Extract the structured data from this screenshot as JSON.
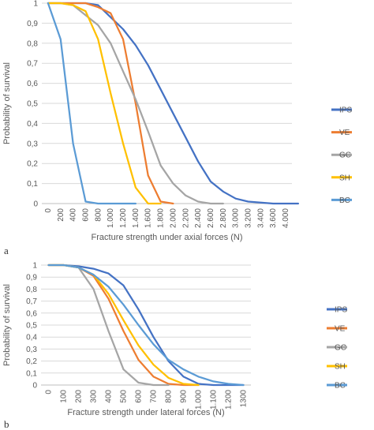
{
  "chart_data": [
    {
      "panel_label": "a",
      "type": "line",
      "xlabel": "Fracture strength under axial forces (N)",
      "ylabel": "Probability of survival",
      "x_ticks": [
        "0",
        "200",
        "400",
        "600",
        "800",
        "1.000",
        "1.200",
        "1.400",
        "1.600",
        "1.800",
        "2.000",
        "2.200",
        "2.400",
        "2.600",
        "2.800",
        "3.000",
        "3.200",
        "3.400",
        "3.600",
        "4.000"
      ],
      "y_ticks": [
        "0",
        "0,1",
        "0,2",
        "0,3",
        "0,4",
        "0,5",
        "0,6",
        "0,7",
        "0,8",
        "0,9",
        "1"
      ],
      "ylim": [
        0,
        1
      ],
      "grid": "horizontal",
      "legend_position": "right",
      "series": [
        {
          "name": "IPS",
          "color": "#4472C4",
          "points": [
            [
              0,
              1
            ],
            [
              200,
              1
            ],
            [
              400,
              1
            ],
            [
              600,
              1
            ],
            [
              800,
              0.99
            ],
            [
              1000,
              0.93
            ],
            [
              1200,
              0.87
            ],
            [
              1400,
              0.79
            ],
            [
              1600,
              0.69
            ],
            [
              1800,
              0.57
            ],
            [
              2000,
              0.45
            ],
            [
              2200,
              0.33
            ],
            [
              2400,
              0.21
            ],
            [
              2600,
              0.11
            ],
            [
              2800,
              0.06
            ],
            [
              3000,
              0.025
            ],
            [
              3200,
              0.01
            ],
            [
              3400,
              0.005
            ],
            [
              3600,
              0
            ],
            [
              4000,
              0
            ]
          ]
        },
        {
          "name": "VE",
          "color": "#ED7D31",
          "points": [
            [
              0,
              1
            ],
            [
              200,
              1
            ],
            [
              400,
              1
            ],
            [
              600,
              1
            ],
            [
              800,
              0.98
            ],
            [
              1000,
              0.95
            ],
            [
              1200,
              0.82
            ],
            [
              1400,
              0.5
            ],
            [
              1600,
              0.14
            ],
            [
              1800,
              0.01
            ],
            [
              2000,
              0
            ]
          ]
        },
        {
          "name": "GC",
          "color": "#A5A5A5",
          "points": [
            [
              0,
              1
            ],
            [
              200,
              1
            ],
            [
              400,
              0.99
            ],
            [
              600,
              0.94
            ],
            [
              800,
              0.89
            ],
            [
              1000,
              0.8
            ],
            [
              1200,
              0.66
            ],
            [
              1400,
              0.52
            ],
            [
              1600,
              0.36
            ],
            [
              1800,
              0.19
            ],
            [
              2000,
              0.1
            ],
            [
              2200,
              0.04
            ],
            [
              2400,
              0.01
            ],
            [
              2600,
              0
            ],
            [
              2800,
              0
            ]
          ]
        },
        {
          "name": "SH",
          "color": "#FFC000",
          "points": [
            [
              0,
              1
            ],
            [
              200,
              1
            ],
            [
              400,
              0.99
            ],
            [
              600,
              0.96
            ],
            [
              800,
              0.82
            ],
            [
              1000,
              0.55
            ],
            [
              1200,
              0.3
            ],
            [
              1400,
              0.08
            ],
            [
              1600,
              0
            ],
            [
              1800,
              0
            ]
          ]
        },
        {
          "name": "BC",
          "color": "#5B9BD5",
          "points": [
            [
              0,
              1
            ],
            [
              200,
              0.82
            ],
            [
              400,
              0.3
            ],
            [
              600,
              0.01
            ],
            [
              800,
              0
            ],
            [
              1000,
              0
            ],
            [
              1200,
              0
            ],
            [
              1400,
              0
            ]
          ]
        }
      ]
    },
    {
      "panel_label": "b",
      "type": "line",
      "xlabel": "Fracture strength under lateral forces (N)",
      "ylabel": "Probability of survival",
      "x_ticks": [
        "0",
        "100",
        "200",
        "300",
        "400",
        "500",
        "600",
        "700",
        "800",
        "900",
        "1.000",
        "1.100",
        "1.200",
        "1300"
      ],
      "y_ticks": [
        "0",
        "0,1",
        "0,2",
        "0,3",
        "0,4",
        "0,5",
        "0,6",
        "0,7",
        "0,8",
        "0,9",
        "1"
      ],
      "ylim": [
        0,
        1
      ],
      "grid": "horizontal",
      "legend_position": "right",
      "series": [
        {
          "name": "IPS",
          "color": "#4472C4",
          "points": [
            [
              0,
              1
            ],
            [
              100,
              1
            ],
            [
              200,
              0.99
            ],
            [
              300,
              0.97
            ],
            [
              400,
              0.93
            ],
            [
              500,
              0.83
            ],
            [
              600,
              0.63
            ],
            [
              700,
              0.4
            ],
            [
              800,
              0.2
            ],
            [
              900,
              0.07
            ],
            [
              1000,
              0.01
            ],
            [
              1100,
              0
            ],
            [
              1200,
              0
            ],
            [
              1300,
              0
            ]
          ]
        },
        {
          "name": "VE",
          "color": "#ED7D31",
          "points": [
            [
              0,
              1
            ],
            [
              100,
              1
            ],
            [
              200,
              0.98
            ],
            [
              300,
              0.91
            ],
            [
              400,
              0.72
            ],
            [
              500,
              0.45
            ],
            [
              600,
              0.21
            ],
            [
              700,
              0.07
            ],
            [
              800,
              0.01
            ],
            [
              900,
              0
            ],
            [
              1000,
              0
            ]
          ]
        },
        {
          "name": "GC",
          "color": "#A5A5A5",
          "points": [
            [
              0,
              1
            ],
            [
              100,
              1
            ],
            [
              200,
              0.98
            ],
            [
              300,
              0.8
            ],
            [
              400,
              0.45
            ],
            [
              500,
              0.13
            ],
            [
              600,
              0.02
            ],
            [
              700,
              0
            ],
            [
              800,
              0
            ]
          ]
        },
        {
          "name": "SH",
          "color": "#FFC000",
          "points": [
            [
              0,
              1
            ],
            [
              100,
              1
            ],
            [
              200,
              0.98
            ],
            [
              300,
              0.92
            ],
            [
              400,
              0.76
            ],
            [
              500,
              0.54
            ],
            [
              600,
              0.33
            ],
            [
              700,
              0.17
            ],
            [
              800,
              0.06
            ],
            [
              900,
              0.01
            ],
            [
              1000,
              0
            ]
          ]
        },
        {
          "name": "BC",
          "color": "#5B9BD5",
          "points": [
            [
              0,
              1
            ],
            [
              100,
              1
            ],
            [
              200,
              0.98
            ],
            [
              300,
              0.92
            ],
            [
              400,
              0.82
            ],
            [
              500,
              0.67
            ],
            [
              600,
              0.5
            ],
            [
              700,
              0.34
            ],
            [
              800,
              0.21
            ],
            [
              900,
              0.13
            ],
            [
              1000,
              0.07
            ],
            [
              1100,
              0.03
            ],
            [
              1200,
              0.01
            ],
            [
              1300,
              0
            ]
          ]
        }
      ]
    }
  ]
}
